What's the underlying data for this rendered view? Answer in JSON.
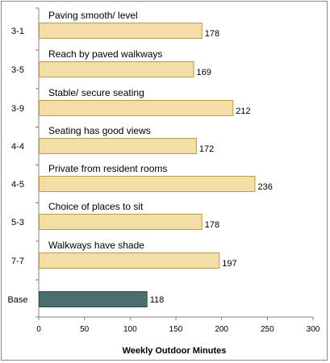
{
  "chart_data": {
    "type": "bar",
    "orientation": "horizontal",
    "categories": [
      "3-1",
      "3-5",
      "3-9",
      "4-4",
      "4-5",
      "5-3",
      "7-7",
      "Base"
    ],
    "bar_labels": [
      "Paving smooth/ level",
      "Reach by paved walkways",
      "Stable/ secure seating",
      "Seating has good views",
      "Private from resident rooms",
      "Choice of places to sit",
      "Walkways have shade",
      ""
    ],
    "values": [
      178,
      169,
      212,
      172,
      236,
      178,
      197,
      118
    ],
    "xlabel": "Weekly Outdoor Minutes",
    "xlim": [
      0,
      300
    ],
    "xticks": [
      0,
      50,
      100,
      150,
      200,
      250,
      300
    ],
    "grid": false,
    "colors": {
      "bar": "#f2dea6",
      "bar_edge": "#b99c4f",
      "base": "#4a6e6e",
      "base_edge": "#2f4f4f"
    }
  }
}
